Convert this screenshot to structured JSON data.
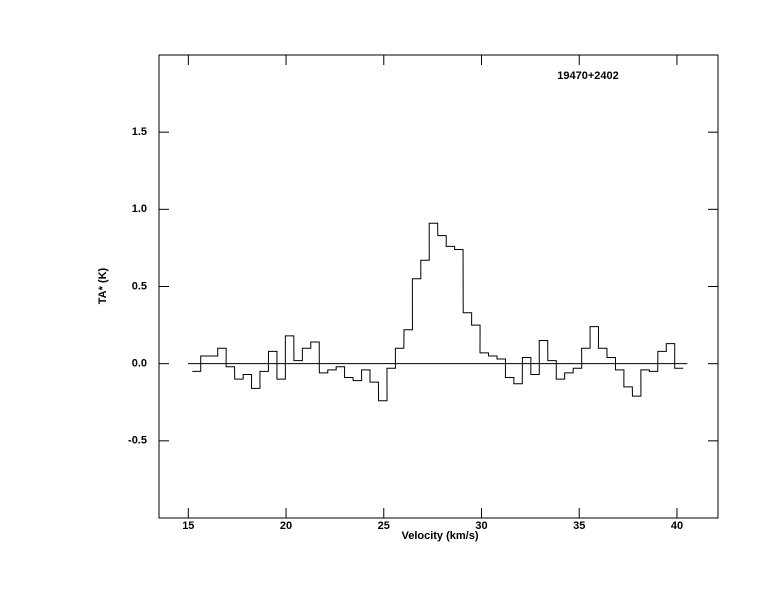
{
  "chart_data": {
    "type": "step",
    "annotation": "19470+2402",
    "xlabel": "Velocity (km/s)",
    "ylabel": "TA* (K)",
    "x": [
      15.42,
      15.85,
      16.29,
      16.72,
      17.15,
      17.59,
      18.02,
      18.45,
      18.88,
      19.32,
      19.75,
      20.18,
      20.62,
      21.05,
      21.48,
      21.92,
      22.35,
      22.78,
      23.21,
      23.65,
      24.08,
      24.51,
      24.95,
      25.38,
      25.81,
      26.25,
      26.68,
      27.11,
      27.54,
      27.98,
      28.41,
      28.84,
      29.28,
      29.71,
      30.14,
      30.58,
      31.01,
      31.44,
      31.87,
      32.31,
      32.74,
      33.17,
      33.61,
      34.04,
      34.47,
      34.91,
      35.34,
      35.77,
      36.2,
      36.64,
      37.07,
      37.5,
      37.94,
      38.37,
      38.8,
      39.24,
      39.67,
      40.1
    ],
    "values": [
      -0.05,
      0.05,
      0.05,
      0.1,
      -0.02,
      -0.1,
      -0.07,
      -0.16,
      -0.05,
      0.08,
      -0.1,
      0.18,
      0.02,
      0.1,
      0.14,
      -0.06,
      -0.04,
      -0.02,
      -0.09,
      -0.11,
      -0.04,
      -0.12,
      -0.24,
      -0.03,
      0.1,
      0.22,
      0.55,
      0.67,
      0.91,
      0.83,
      0.76,
      0.74,
      0.33,
      0.25,
      0.07,
      0.05,
      0.03,
      -0.09,
      -0.13,
      0.04,
      -0.07,
      0.15,
      0.02,
      -0.1,
      -0.06,
      -0.03,
      0.1,
      0.24,
      0.1,
      0.04,
      -0.04,
      -0.15,
      -0.21,
      -0.04,
      -0.05,
      0.08,
      0.13,
      -0.03
    ],
    "color": "#000000",
    "xlim": [
      13.5,
      42.1
    ],
    "xticks": [
      15,
      20,
      25,
      30,
      35,
      40
    ],
    "ylim": [
      -1,
      2
    ],
    "yticks": [
      -0.5,
      {
        "value": 0,
        "label": "0.0"
      },
      0.5,
      {
        "value": 1,
        "label": "1.0"
      },
      1.5
    ]
  }
}
